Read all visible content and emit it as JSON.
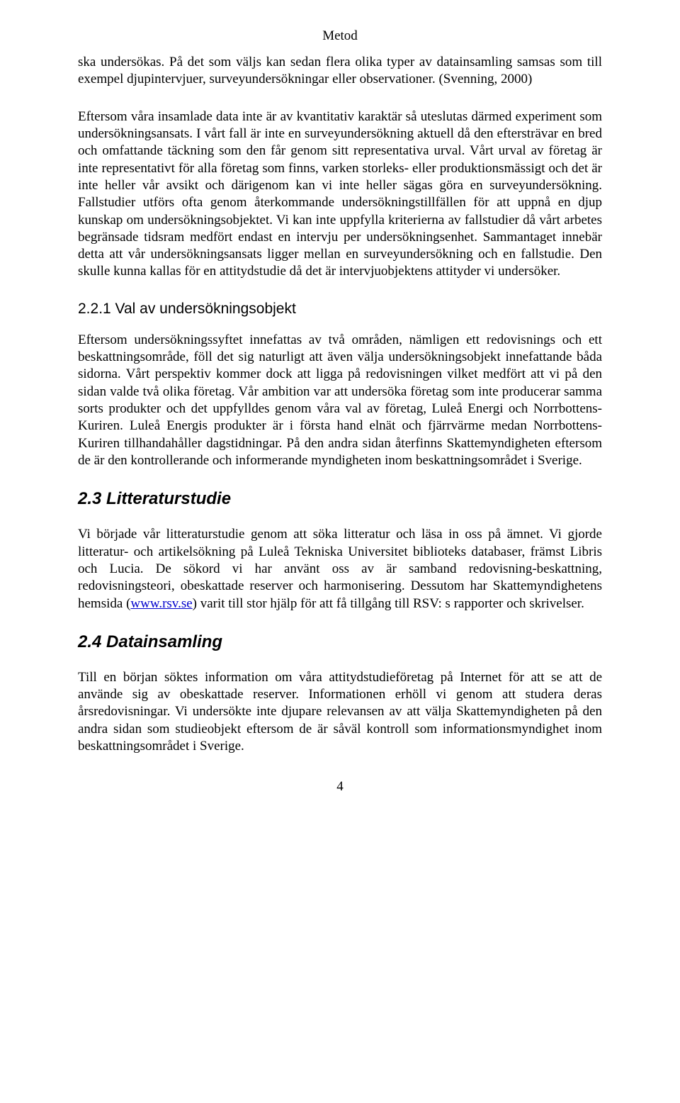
{
  "header": "Metod",
  "para1": "ska undersökas. På det som väljs kan sedan flera olika typer av datainsamling samsas som till exempel djupintervjuer, surveyundersökningar eller observationer. (Svenning, 2000)",
  "para2": "Eftersom våra insamlade data inte är av kvantitativ karaktär så uteslutas därmed experiment som undersökningsansats. I vårt fall är inte en surveyundersökning aktuell då den eftersträvar en bred och omfattande täckning som den får genom sitt representativa urval. Vårt urval av företag är inte representativt för alla företag som finns, varken storleks- eller produktionsmässigt och det är inte heller vår avsikt och därigenom kan vi inte heller sägas göra en surveyundersökning. Fallstudier utförs ofta genom återkommande undersökningstillfällen för att uppnå en djup kunskap om undersökningsobjektet. Vi kan inte uppfylla kriterierna av fallstudier då vårt arbetes begränsade tidsram medfört endast en intervju per undersökningsenhet. Sammantaget innebär detta att vår undersökningsansats ligger mellan en surveyundersökning och en fallstudie. Den skulle kunna kallas för en attitydstudie då det är intervjuobjektens attityder vi undersöker.",
  "subheading_221": "2.2.1 Val av undersökningsobjekt",
  "para3": "Eftersom undersökningssyftet innefattas av två områden, nämligen ett redovisnings och ett beskattningsområde, föll det sig naturligt att även välja undersökningsobjekt innefattande båda sidorna. Vårt perspektiv kommer dock att ligga på redovisningen vilket medfört att vi på den sidan valde två olika företag. Vår ambition var att undersöka företag som inte producerar samma sorts produkter och det uppfylldes genom våra val av företag, Luleå Energi och Norrbottens-Kuriren. Luleå Energis produkter är i första hand elnät och fjärrvärme medan Norrbottens-Kuriren tillhandahåller dagstidningar. På den andra sidan återfinns Skattemyndigheten eftersom de är den kontrollerande och informerande myndigheten inom beskattningsområdet i Sverige.",
  "heading_23": "2.3 Litteraturstudie",
  "para4_pre": "Vi började vår litteraturstudie genom att söka litteratur och läsa in oss på ämnet. Vi gjorde litteratur- och artikelsökning på Luleå Tekniska Universitet biblioteks databaser, främst Libris och Lucia. De sökord vi har använt oss av är samband redovisning-beskattning, redovisningsteori, obeskattade reserver och harmonisering. Dessutom har Skattemyndighetens hemsida (",
  "para4_link": "www.rsv.se",
  "para4_post": ") varit till stor hjälp för att få tillgång till RSV: s rapporter och skrivelser.",
  "heading_24": "2.4 Datainsamling",
  "para5": "Till en början söktes information om våra attitydstudieföretag på Internet för att se att de använde sig av obeskattade reserver. Informationen erhöll vi genom att studera deras årsredovisningar. Vi undersökte inte djupare relevansen av att välja Skattemyndigheten på den andra sidan som studieobjekt eftersom de är såväl kontroll som informationsmyndighet inom beskattningsområdet i Sverige.",
  "page_number": "4"
}
